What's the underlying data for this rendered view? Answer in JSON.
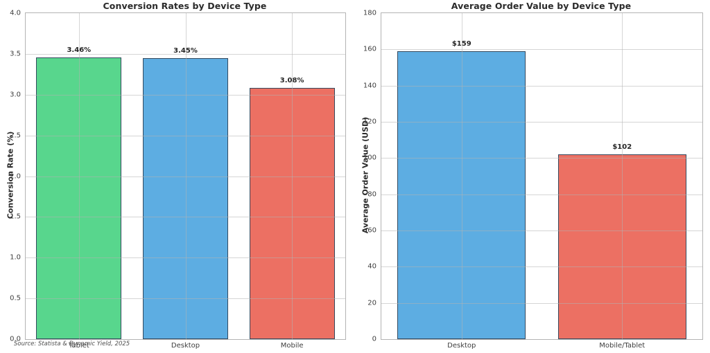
{
  "annotation": {
    "source": "Source: Statista & Dynamic Yield, 2025"
  },
  "chart_data": [
    {
      "type": "bar",
      "title": "Conversion Rates by Device Type",
      "xlabel": "",
      "ylabel": "Conversion Rate (%)",
      "categories": [
        "Tablet",
        "Desktop",
        "Mobile"
      ],
      "values": [
        3.46,
        3.45,
        3.08
      ],
      "bar_labels": [
        "3.46%",
        "3.45%",
        "3.08%"
      ],
      "bar_colors": [
        "#58d68d",
        "#5dade2",
        "#ec7063"
      ],
      "bar_edge_color": "#34495e",
      "ylim": [
        0,
        4.0
      ],
      "yticks": [
        0,
        0.5,
        1.0,
        1.5,
        2.0,
        2.5,
        3.0,
        3.5,
        4.0
      ],
      "ytick_labels": [
        "0.0",
        "0.5",
        "1.0",
        "1.5",
        "2.0",
        "2.5",
        "3.0",
        "3.5",
        "4.0"
      ],
      "grid": true,
      "legend": null
    },
    {
      "type": "bar",
      "title": "Average Order Value by Device Type",
      "xlabel": "",
      "ylabel": "Average Order Value (USD)",
      "categories": [
        "Desktop",
        "Mobile/Tablet"
      ],
      "values": [
        159,
        102
      ],
      "bar_labels": [
        "$159",
        "$102"
      ],
      "bar_colors": [
        "#5dade2",
        "#ec7063"
      ],
      "bar_edge_color": "#34495e",
      "ylim": [
        0,
        180
      ],
      "yticks": [
        0,
        20,
        40,
        60,
        80,
        100,
        120,
        140,
        160,
        180
      ],
      "ytick_labels": [
        "0",
        "20",
        "40",
        "60",
        "80",
        "100",
        "120",
        "140",
        "160",
        "180"
      ],
      "grid": true,
      "legend": null
    }
  ]
}
